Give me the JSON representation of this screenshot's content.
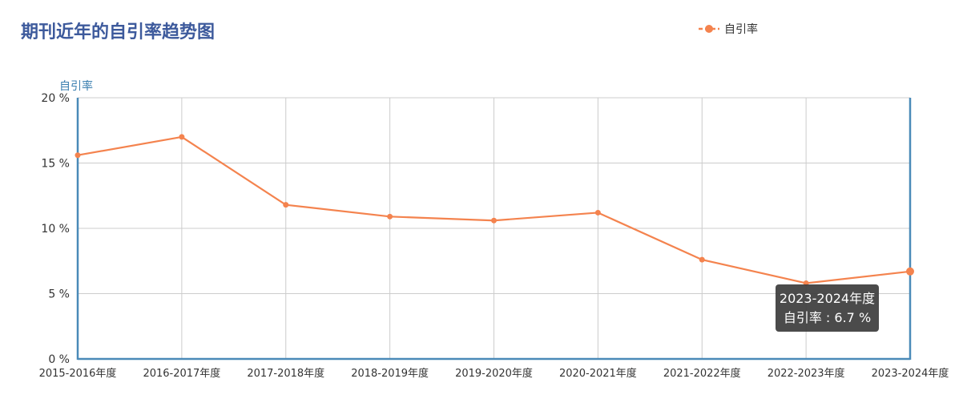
{
  "chart_data": {
    "type": "line",
    "title": "期刊近年的自引率趋势图",
    "ylabel": "自引率",
    "xlabel": "",
    "y_unit": "%",
    "ylim": [
      0,
      20
    ],
    "y_ticks": [
      "0 %",
      "5 %",
      "10 %",
      "15 %",
      "20 %"
    ],
    "y_tick_values": [
      0,
      5,
      10,
      15,
      20
    ],
    "categories": [
      "2015-2016年度",
      "2016-2017年度",
      "2017-2018年度",
      "2018-2019年度",
      "2019-2020年度",
      "2020-2021年度",
      "2021-2022年度",
      "2022-2023年度",
      "2023-2024年度"
    ],
    "series": [
      {
        "name": "自引率",
        "values": [
          15.6,
          17.0,
          11.8,
          10.9,
          10.6,
          11.2,
          7.6,
          5.8,
          6.7
        ]
      }
    ],
    "grid": true,
    "legend_position": "top-right"
  },
  "tooltip": {
    "category": "2023-2024年度",
    "text": "自引率 : 6.7 %",
    "series_index": 0,
    "point_index": 8
  },
  "colors": {
    "title": "#3d5a9c",
    "series": "#f4834e",
    "axis": "#4a8ab8",
    "ylabel": "#3b7fb0",
    "grid": "#cccccc",
    "tick_text": "#333333",
    "tooltip_bg": "#3c3c3c"
  }
}
